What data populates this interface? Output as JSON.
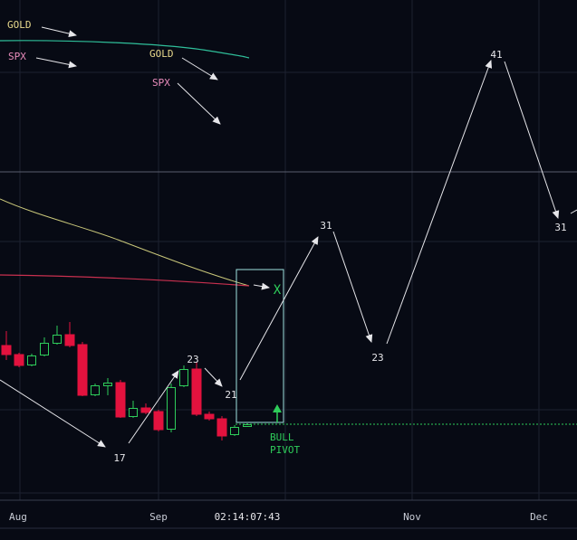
{
  "legend": {
    "gold": "GOLD",
    "spx": "SPX"
  },
  "overlay_legend": {
    "gold": "GOLD",
    "spx": "SPX"
  },
  "wave_labels": [
    "17",
    "23",
    "21",
    "31",
    "23",
    "41",
    "31"
  ],
  "marker": "X",
  "pivot": {
    "line1": "BULL",
    "line2": "PIVOT"
  },
  "x_axis": [
    "Aug",
    "Sep",
    "02:14:07:43",
    "Nov",
    "Dec"
  ]
}
